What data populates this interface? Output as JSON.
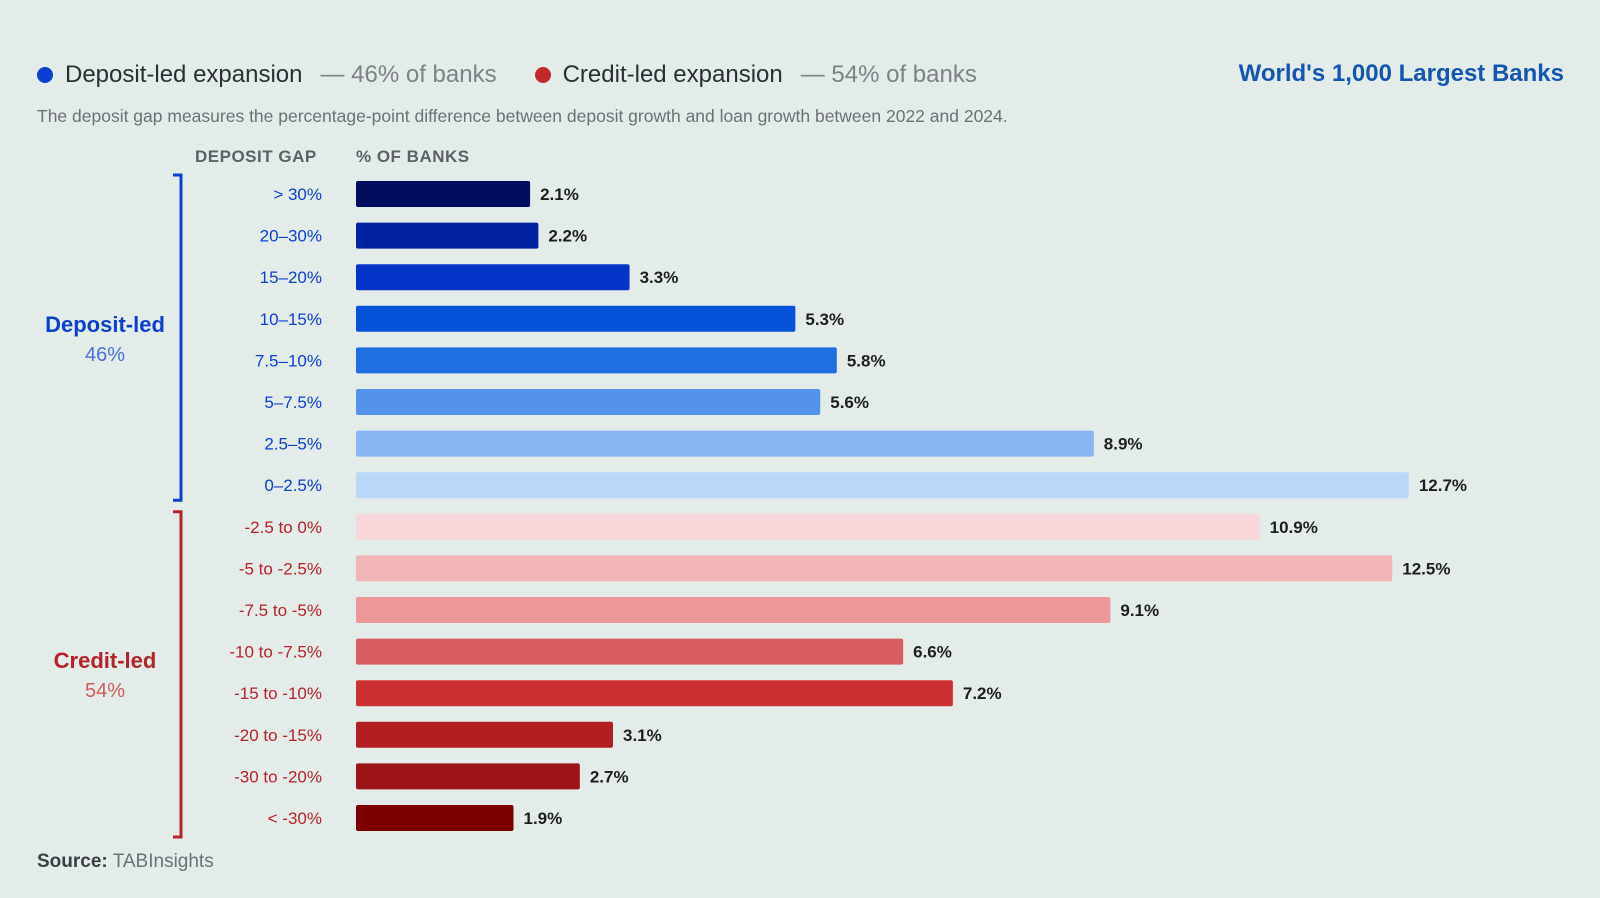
{
  "legend": [
    {
      "name": "Deposit-led expansion",
      "share": "— 46% of banks",
      "color": "#0b3fcf"
    },
    {
      "name": "Credit-led expansion",
      "share": "— 54% of banks",
      "color": "#c12a2a"
    }
  ],
  "corner_title": "World's 1,000 Largest Banks",
  "subtitle": "The deposit gap measures the percentage-point difference between deposit growth and loan growth between 2022 and 2024.",
  "column_headers": {
    "gap": "DEPOSIT GAP",
    "pct": "% OF BANKS"
  },
  "groups": {
    "deposit": {
      "title": "Deposit-led",
      "share": "46%",
      "color": "#0b3fcf",
      "share_color": "#4a6fd6"
    },
    "credit": {
      "title": "Credit-led",
      "share": "54%",
      "color": "#b52328",
      "share_color": "#cf5a5a"
    }
  },
  "source": {
    "label": "Source:",
    "text": "TABInsights"
  },
  "chart_data": {
    "type": "bar",
    "orientation": "horizontal",
    "categories": [
      "> 30%",
      "20–30%",
      "15–20%",
      "10–15%",
      "7.5–10%",
      "5–7.5%",
      "2.5–5%",
      "0–2.5%",
      "-2.5 to 0%",
      "-5 to -2.5%",
      "-7.5 to -5%",
      "-10 to -7.5%",
      "-15 to -10%",
      "-20 to -15%",
      "-30 to -20%",
      "< -30%"
    ],
    "values": [
      2.1,
      2.2,
      3.3,
      5.3,
      5.8,
      5.6,
      8.9,
      12.7,
      10.9,
      12.5,
      9.1,
      6.6,
      7.2,
      3.1,
      2.7,
      1.9
    ],
    "data_labels": [
      "2.1%",
      "2.2%",
      "3.3%",
      "5.3%",
      "5.8%",
      "5.6%",
      "8.9%",
      "12.7%",
      "10.9%",
      "12.5%",
      "9.1%",
      "6.6%",
      "7.2%",
      "3.1%",
      "2.7%",
      "1.9%"
    ],
    "group": [
      "deposit",
      "deposit",
      "deposit",
      "deposit",
      "deposit",
      "deposit",
      "deposit",
      "deposit",
      "credit",
      "credit",
      "credit",
      "credit",
      "credit",
      "credit",
      "credit",
      "credit"
    ],
    "colors": [
      "#020d5e",
      "#0322a0",
      "#0535c8",
      "#0553d8",
      "#1f6fe3",
      "#5493ea",
      "#89b7f3",
      "#bad7f8",
      "#f9d6d9",
      "#f1b5b7",
      "#ec9798",
      "#d85e62",
      "#cd3033",
      "#b21f22",
      "#9c1417",
      "#7c0000"
    ],
    "xlim": [
      0,
      13
    ],
    "grid": false,
    "legend": "top-left"
  }
}
